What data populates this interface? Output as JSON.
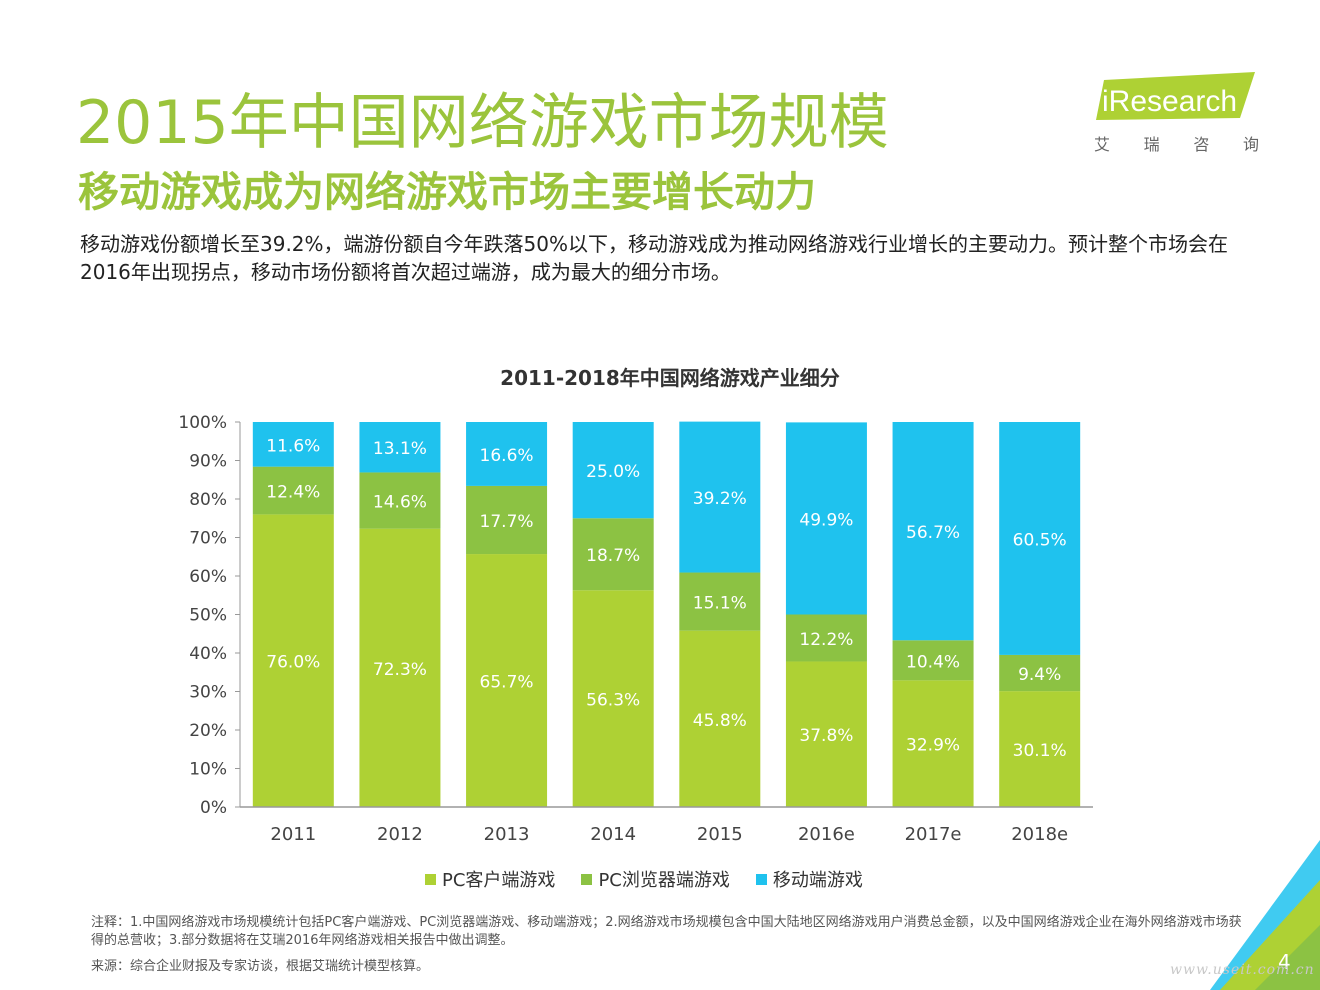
{
  "header": {
    "title": "2015年中国网络游戏市场规模",
    "subtitle": "移动游戏成为网络游戏市场主要增长动力",
    "body": "移动游戏份额增长至39.2%，端游份额自今年跌落50%以下，移动游戏成为推动网络游戏行业增长的主要动力。预计整个市场会在2016年出现拐点，移动市场份额将首次超过端游，成为最大的细分市场。"
  },
  "logo": {
    "brand": "iResearch",
    "chars": [
      "艾",
      "瑞",
      "咨",
      "询"
    ]
  },
  "colors": {
    "accent": "#9bc43c",
    "pc_client": "#aed134",
    "pc_browser": "#8cc243",
    "mobile": "#1fc2ee",
    "axis": "#999999"
  },
  "chart_data": {
    "type": "bar",
    "stacked": true,
    "title": "2011-2018年中国网络游戏产业细分",
    "categories": [
      "2011",
      "2012",
      "2013",
      "2014",
      "2015",
      "2016e",
      "2017e",
      "2018e"
    ],
    "series": [
      {
        "name": "PC客户端游戏",
        "values": [
          76.0,
          72.3,
          65.7,
          56.3,
          45.8,
          37.8,
          32.9,
          30.1
        ]
      },
      {
        "name": "PC浏览器端游戏",
        "values": [
          12.4,
          14.6,
          17.7,
          18.7,
          15.1,
          12.2,
          10.4,
          9.4
        ]
      },
      {
        "name": "移动端游戏",
        "values": [
          11.6,
          13.1,
          16.6,
          25.0,
          39.2,
          49.9,
          56.7,
          60.5
        ]
      }
    ],
    "labels": [
      [
        "76.0%",
        "72.3%",
        "65.7%",
        "56.3%",
        "45.8%",
        "37.8%",
        "32.9%",
        "30.1%"
      ],
      [
        "12.4%",
        "14.6%",
        "17.7%",
        "18.7%",
        "15.1%",
        "12.2%",
        "10.4%",
        "9.4%"
      ],
      [
        "11.6%",
        "13.1%",
        "16.6%",
        "25.0%",
        "39.2%",
        "49.9%",
        "56.7%",
        "60.5%"
      ]
    ],
    "yticks": [
      "0%",
      "10%",
      "20%",
      "30%",
      "40%",
      "50%",
      "60%",
      "70%",
      "80%",
      "90%",
      "100%"
    ],
    "ylim": [
      0,
      100
    ],
    "legend_position": "bottom"
  },
  "footer": {
    "note": "注释：1.中国网络游戏市场规模统计包括PC客户端游戏、PC浏览器端游戏、移动端游戏；2.网络游戏市场规模包含中国大陆地区网络游戏用户消费总金额，以及中国网络游戏企业在海外网络游戏市场获得的总营收；3.部分数据将在艾瑞2016年网络游戏相关报告中做出调整。",
    "source": "来源：综合企业财报及专家访谈，根据艾瑞统计模型核算。",
    "page_number": "4",
    "watermark": "www.useit.com.cn"
  }
}
